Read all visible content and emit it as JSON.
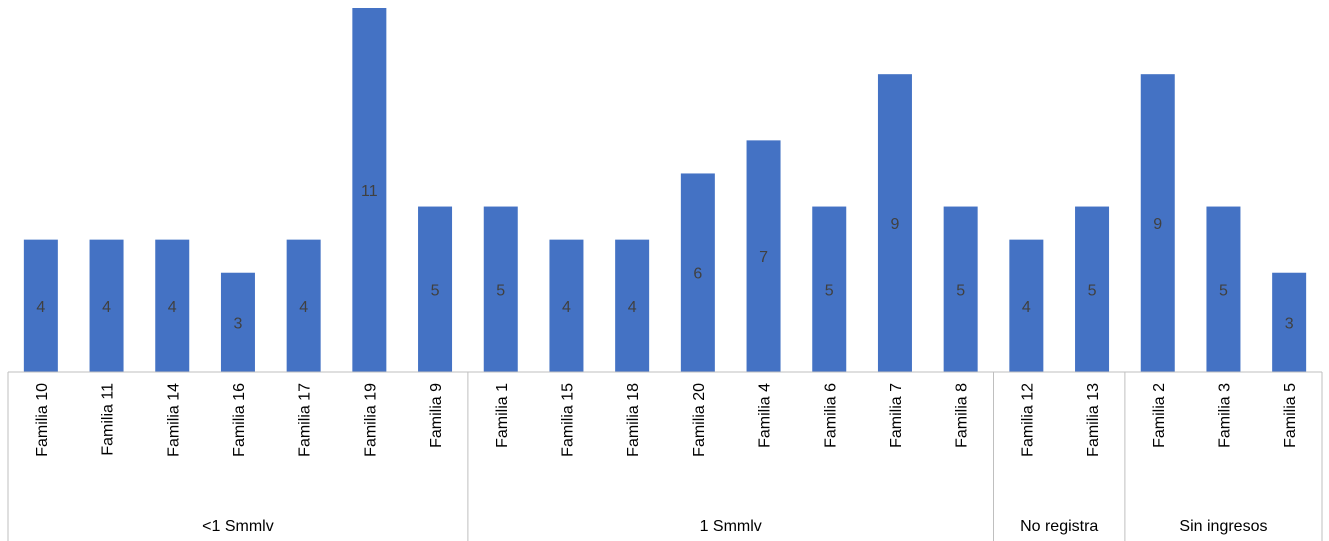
{
  "chart_data": {
    "type": "bar",
    "title": "",
    "xlabel": "",
    "ylabel": "",
    "ylim": [
      0,
      11
    ],
    "grid": false,
    "legend": "none",
    "bar_color": "#4472C4",
    "axis_color": "#BFBFBF",
    "categories": [
      "Familia 10",
      "Familia 11",
      "Familia 14",
      "Familia 16",
      "Familia 17",
      "Familia 19",
      "Familia 9",
      "Familia 1",
      "Familia 15",
      "Familia 18",
      "Familia 20",
      "Familia 4",
      "Familia 6",
      "Familia 7",
      "Familia 8",
      "Familia 12",
      "Familia 13",
      "Familia 2",
      "Familia 3",
      "Familia 5"
    ],
    "values": [
      4,
      4,
      4,
      3,
      4,
      11,
      5,
      5,
      4,
      4,
      6,
      7,
      5,
      9,
      5,
      4,
      5,
      9,
      5,
      3
    ],
    "data_labels": [
      "4",
      "4",
      "4",
      "3",
      "4",
      "11",
      "5",
      "5",
      "4",
      "4",
      "6",
      "7",
      "5",
      "9",
      "5",
      "4",
      "5",
      "9",
      "5",
      "3"
    ],
    "groups": [
      {
        "label": "<1 Smmlv",
        "count": 7
      },
      {
        "label": "1 Smmlv",
        "count": 8
      },
      {
        "label": "No registra",
        "count": 2
      },
      {
        "label": "Sin ingresos",
        "count": 3
      }
    ]
  }
}
